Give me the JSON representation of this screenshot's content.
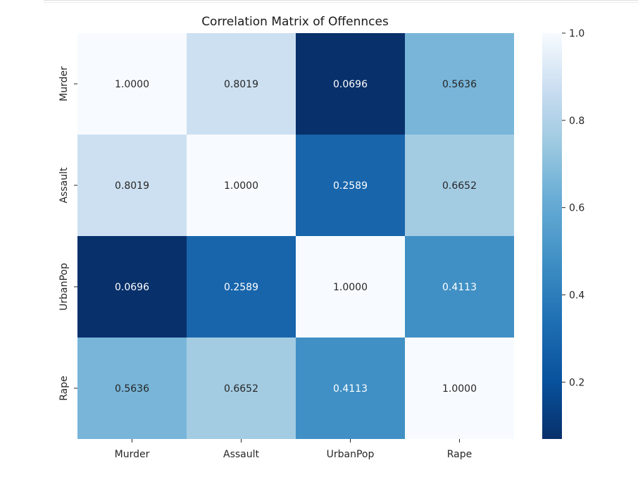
{
  "chart_data": {
    "type": "heatmap",
    "title": "Correlation Matrix of Offennces",
    "x_categories": [
      "Murder",
      "Assault",
      "UrbanPop",
      "Rape"
    ],
    "y_categories": [
      "Murder",
      "Assault",
      "UrbanPop",
      "Rape"
    ],
    "values": [
      [
        1.0,
        0.8019,
        0.0696,
        0.5636
      ],
      [
        0.8019,
        1.0,
        0.2589,
        0.6652
      ],
      [
        0.0696,
        0.2589,
        1.0,
        0.4113
      ],
      [
        0.5636,
        0.6652,
        0.4113,
        1.0
      ]
    ],
    "labels": [
      [
        "1.0000",
        "0.8019",
        "0.0696",
        "0.5636"
      ],
      [
        "0.8019",
        "1.0000",
        "0.2589",
        "0.6652"
      ],
      [
        "0.0696",
        "0.2589",
        "1.0000",
        "0.4113"
      ],
      [
        "0.5636",
        "0.6652",
        "0.4113",
        "1.0000"
      ]
    ],
    "colormap": "Blues_r",
    "vmin": 0.0696,
    "vmax": 1.0,
    "colorbar_ticks": [
      0.2,
      0.4,
      0.6,
      0.8,
      1.0
    ],
    "colorbar_tick_labels": [
      "0.2",
      "0.4",
      "0.6",
      "0.8",
      "1.0"
    ],
    "grid": false
  }
}
